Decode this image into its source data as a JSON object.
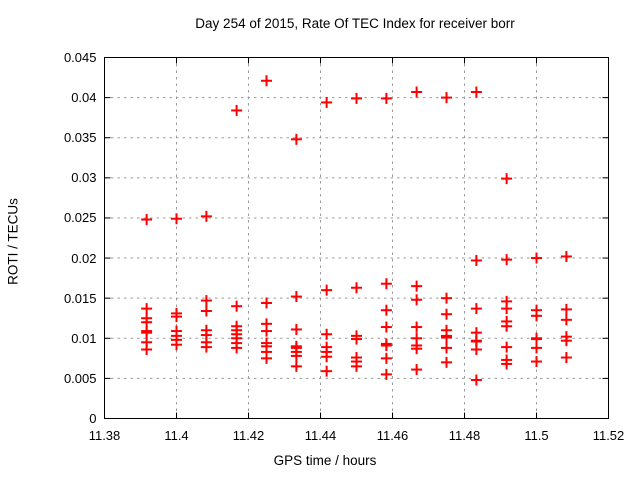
{
  "chart_data": {
    "type": "scatter",
    "title": "Day 254 of 2015, Rate Of TEC Index for receiver borr",
    "xlabel": "GPS time / hours",
    "ylabel": "ROTI / TECUs",
    "xlim": [
      11.38,
      11.52
    ],
    "ylim": [
      0,
      0.045
    ],
    "xticks": [
      11.38,
      11.4,
      11.42,
      11.44,
      11.46,
      11.48,
      11.5,
      11.52
    ],
    "xtick_labels": [
      "11.38",
      "11.4",
      "11.42",
      "11.44",
      "11.46",
      "11.48",
      "11.5",
      "11.52"
    ],
    "yticks": [
      0,
      0.005,
      0.01,
      0.015,
      0.02,
      0.025,
      0.03,
      0.035,
      0.04,
      0.045
    ],
    "ytick_labels": [
      "0",
      "0.005",
      "0.01",
      "0.015",
      "0.02",
      "0.025",
      "0.03",
      "0.035",
      "0.04",
      "0.045"
    ],
    "grid": true,
    "legend": "none",
    "marker": {
      "shape": "plus",
      "color": "#ff0000"
    },
    "grid_color": "#9a9a9a",
    "axis_color": "#000000",
    "series": [
      {
        "name": "ROTI",
        "points": [
          [
            11.3917,
            0.0248
          ],
          [
            11.3917,
            0.0137
          ],
          [
            11.3917,
            0.0125
          ],
          [
            11.3917,
            0.012
          ],
          [
            11.3917,
            0.0109
          ],
          [
            11.3917,
            0.0107
          ],
          [
            11.3917,
            0.0095
          ],
          [
            11.3917,
            0.0086
          ],
          [
            11.4,
            0.0249
          ],
          [
            11.4,
            0.0131
          ],
          [
            11.4,
            0.0127
          ],
          [
            11.4,
            0.0109
          ],
          [
            11.4,
            0.0103
          ],
          [
            11.4,
            0.0098
          ],
          [
            11.4,
            0.0092
          ],
          [
            11.4083,
            0.0252
          ],
          [
            11.4083,
            0.0147
          ],
          [
            11.4083,
            0.0134
          ],
          [
            11.4083,
            0.011
          ],
          [
            11.4083,
            0.0104
          ],
          [
            11.4083,
            0.0095
          ],
          [
            11.4083,
            0.0089
          ],
          [
            11.4167,
            0.0384
          ],
          [
            11.4167,
            0.014
          ],
          [
            11.4167,
            0.0115
          ],
          [
            11.4167,
            0.011
          ],
          [
            11.4167,
            0.0105
          ],
          [
            11.4167,
            0.01
          ],
          [
            11.4167,
            0.0094
          ],
          [
            11.4167,
            0.0088
          ],
          [
            11.425,
            0.0421
          ],
          [
            11.425,
            0.0144
          ],
          [
            11.425,
            0.0118
          ],
          [
            11.425,
            0.0109
          ],
          [
            11.425,
            0.0094
          ],
          [
            11.425,
            0.009
          ],
          [
            11.425,
            0.0083
          ],
          [
            11.425,
            0.0075
          ],
          [
            11.4333,
            0.0348
          ],
          [
            11.4333,
            0.0152
          ],
          [
            11.4333,
            0.0111
          ],
          [
            11.4333,
            0.009
          ],
          [
            11.4333,
            0.0088
          ],
          [
            11.4333,
            0.0083
          ],
          [
            11.4333,
            0.0078
          ],
          [
            11.4333,
            0.0065
          ],
          [
            11.4417,
            0.0394
          ],
          [
            11.4417,
            0.016
          ],
          [
            11.4417,
            0.0105
          ],
          [
            11.4417,
            0.0089
          ],
          [
            11.4417,
            0.0083
          ],
          [
            11.4417,
            0.0077
          ],
          [
            11.4417,
            0.0059
          ],
          [
            11.45,
            0.0399
          ],
          [
            11.45,
            0.0163
          ],
          [
            11.45,
            0.0103
          ],
          [
            11.45,
            0.0099
          ],
          [
            11.45,
            0.0076
          ],
          [
            11.45,
            0.0071
          ],
          [
            11.45,
            0.0065
          ],
          [
            11.4583,
            0.0399
          ],
          [
            11.4583,
            0.0168
          ],
          [
            11.4583,
            0.0135
          ],
          [
            11.4583,
            0.0114
          ],
          [
            11.4583,
            0.0093
          ],
          [
            11.4583,
            0.0091
          ],
          [
            11.4583,
            0.0075
          ],
          [
            11.4583,
            0.0055
          ],
          [
            11.4667,
            0.0407
          ],
          [
            11.4667,
            0.0165
          ],
          [
            11.4667,
            0.0148
          ],
          [
            11.4667,
            0.0114
          ],
          [
            11.4667,
            0.01
          ],
          [
            11.4667,
            0.0091
          ],
          [
            11.4667,
            0.0087
          ],
          [
            11.4667,
            0.0061
          ],
          [
            11.475,
            0.04
          ],
          [
            11.475,
            0.015
          ],
          [
            11.475,
            0.013
          ],
          [
            11.475,
            0.011
          ],
          [
            11.475,
            0.0103
          ],
          [
            11.475,
            0.0101
          ],
          [
            11.475,
            0.0088
          ],
          [
            11.475,
            0.007
          ],
          [
            11.4833,
            0.0407
          ],
          [
            11.4833,
            0.0197
          ],
          [
            11.4833,
            0.0137
          ],
          [
            11.4833,
            0.0107
          ],
          [
            11.4833,
            0.0097
          ],
          [
            11.4833,
            0.0096
          ],
          [
            11.4833,
            0.0086
          ],
          [
            11.4833,
            0.0048
          ],
          [
            11.4917,
            0.0299
          ],
          [
            11.4917,
            0.0198
          ],
          [
            11.4917,
            0.0146
          ],
          [
            11.4917,
            0.0137
          ],
          [
            11.4917,
            0.0121
          ],
          [
            11.4917,
            0.0115
          ],
          [
            11.4917,
            0.0089
          ],
          [
            11.4917,
            0.0073
          ],
          [
            11.4917,
            0.0068
          ],
          [
            11.5,
            0.02
          ],
          [
            11.5,
            0.0135
          ],
          [
            11.5,
            0.0128
          ],
          [
            11.5,
            0.01
          ],
          [
            11.5,
            0.0099
          ],
          [
            11.5,
            0.0088
          ],
          [
            11.5,
            0.0071
          ],
          [
            11.5083,
            0.0202
          ],
          [
            11.5083,
            0.0136
          ],
          [
            11.5083,
            0.0123
          ],
          [
            11.5083,
            0.0102
          ],
          [
            11.5083,
            0.0097
          ],
          [
            11.5083,
            0.0076
          ]
        ]
      }
    ]
  }
}
